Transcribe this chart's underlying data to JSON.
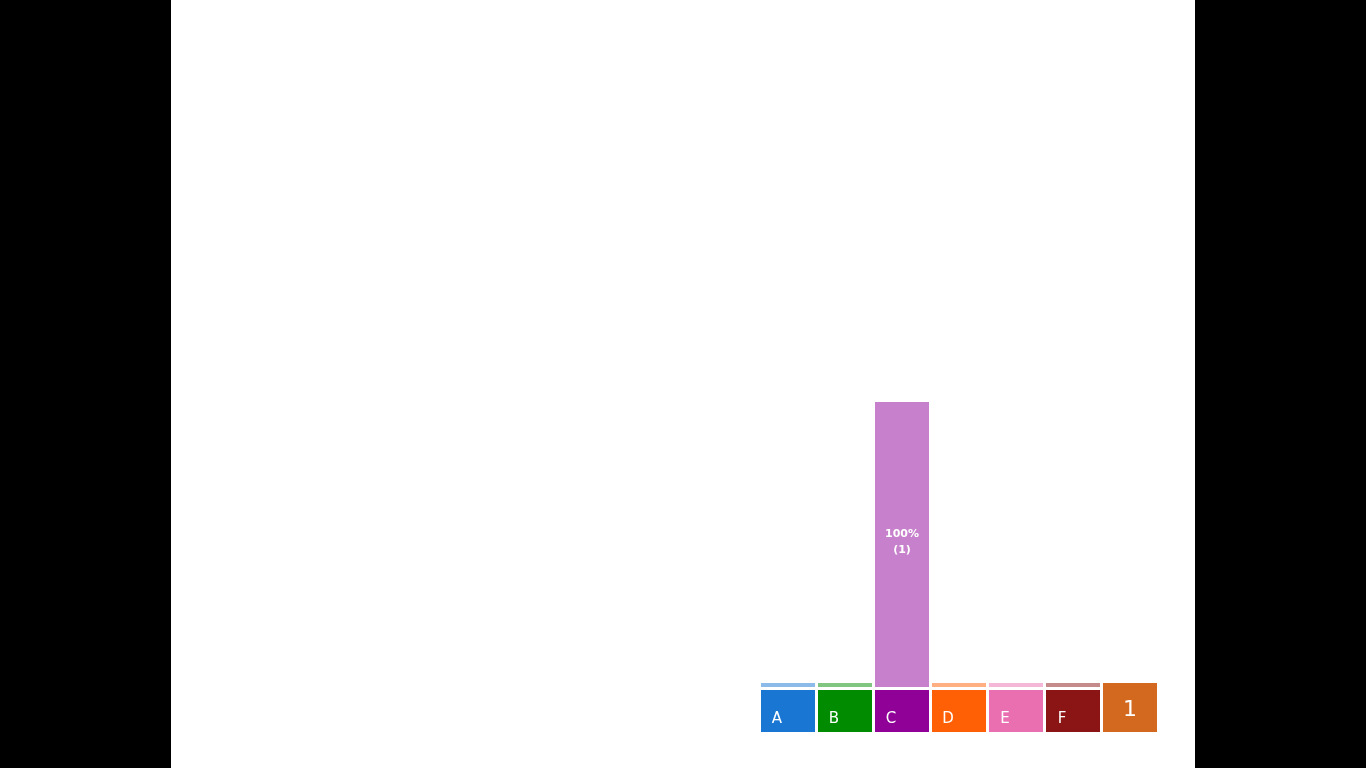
{
  "chart_data": {
    "type": "bar",
    "categories": [
      "A",
      "B",
      "C",
      "D",
      "E",
      "F"
    ],
    "values": [
      0,
      0,
      100,
      0,
      0,
      0
    ],
    "colors": [
      "#8cbbe9",
      "#80c580",
      "#c780cb",
      "#ffaf82",
      "#f4b7d8",
      "#c58a8a"
    ],
    "value_labels": [
      null,
      null,
      "100%\n(1)",
      null,
      null,
      null
    ],
    "annotations": [
      "1"
    ]
  }
}
